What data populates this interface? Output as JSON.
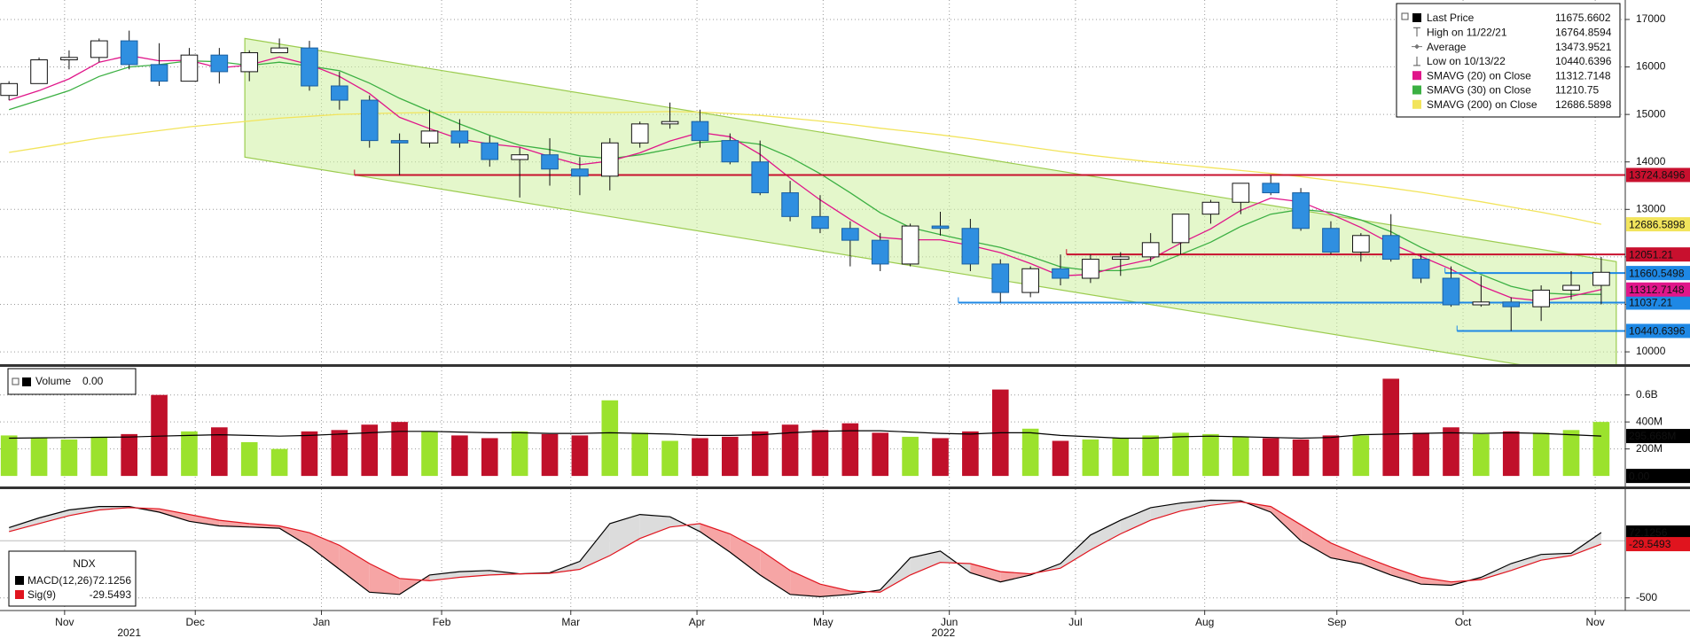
{
  "chart_data": [
    {
      "type": "candlestick",
      "name": "Last Price",
      "high_label": "High on 11/22/21",
      "low_label": "Low on 10/13/22",
      "average": {
        "label": "Average",
        "value": 13473.9521
      },
      "open": [
        15400,
        15650,
        16150,
        16200,
        16550,
        16050,
        15700,
        16250,
        15900,
        16300,
        16400,
        15600,
        15300,
        14450,
        14400,
        14650,
        14400,
        14050,
        14150,
        13850,
        13700,
        14400,
        14800,
        14850,
        14450,
        14000,
        13350,
        12850,
        12600,
        12350,
        11850,
        12650,
        12600,
        11850,
        11250,
        11750,
        11550,
        11950,
        12000,
        12300,
        12900,
        13150,
        13550,
        13350,
        12600,
        12100,
        12450,
        11950,
        11550,
        10990,
        11050,
        10950,
        11300,
        11400
      ],
      "high": [
        15700,
        16200,
        16350,
        16600,
        16764.8594,
        16500,
        16400,
        16400,
        16350,
        16600,
        16550,
        15900,
        15400,
        14600,
        15100,
        14900,
        14550,
        14300,
        14500,
        14100,
        14500,
        14850,
        15250,
        15100,
        14600,
        14450,
        13600,
        13300,
        12750,
        12500,
        12700,
        12950,
        12800,
        11950,
        11800,
        12050,
        12050,
        12100,
        12500,
        12900,
        13200,
        13550,
        13720,
        13450,
        12750,
        12500,
        12900,
        12050,
        11800,
        11600,
        11150,
        11400,
        11700,
        12000
      ],
      "low": [
        15300,
        15650,
        15950,
        16100,
        15950,
        15600,
        15700,
        15650,
        15700,
        16300,
        15500,
        15100,
        14300,
        13720,
        14300,
        14300,
        13900,
        13250,
        13500,
        13300,
        13400,
        14300,
        14700,
        14300,
        13950,
        13300,
        12750,
        12500,
        11800,
        11700,
        11800,
        12450,
        11700,
        11037.21,
        11150,
        11400,
        11450,
        11600,
        11900,
        12050,
        12700,
        12900,
        13300,
        12550,
        12050,
        11900,
        11900,
        11450,
        10950,
        10950,
        10440.6396,
        10650,
        11100,
        11000
      ],
      "close": [
        15650,
        16150,
        16200,
        16550,
        16050,
        15700,
        16250,
        15900,
        16300,
        16400,
        15600,
        15300,
        14450,
        14400,
        14650,
        14400,
        14050,
        14150,
        13850,
        13700,
        14400,
        14800,
        14850,
        14450,
        14000,
        13350,
        12850,
        12600,
        12350,
        11850,
        12650,
        12600,
        11850,
        11250,
        11750,
        11550,
        11950,
        12000,
        12300,
        12900,
        13150,
        13550,
        13350,
        12600,
        12100,
        12450,
        11950,
        11550,
        10990,
        11050,
        10950,
        11300,
        11400,
        11675.6602
      ],
      "up_color": "#ffffff",
      "down_color": "#2f8fe0",
      "series": [
        {
          "name": "SMAVG (20)  on Close",
          "color": "#e0168a",
          "values": [
            15300,
            15500,
            15750,
            16100,
            16240,
            16130,
            16140,
            15980,
            16040,
            16210,
            16050,
            15800,
            15440,
            14940,
            14700,
            14480,
            14380,
            14310,
            14110,
            13940,
            14020,
            14190,
            14440,
            14620,
            14530,
            14160,
            13660,
            13200,
            12790,
            12410,
            12360,
            12360,
            12240,
            12090,
            11860,
            11600,
            11630,
            11810,
            11950,
            12290,
            12590,
            12980,
            13240,
            13160,
            12900,
            12620,
            12280,
            12010,
            11740,
            11390,
            11140,
            11070,
            11170,
            11312.7148
          ]
        },
        {
          "name": "SMAVG (30)  on Close",
          "color": "#3cb043",
          "values": [
            15100,
            15300,
            15500,
            15800,
            16000,
            16050,
            16130,
            16110,
            16030,
            16100,
            16020,
            15920,
            15660,
            15340,
            15070,
            14800,
            14560,
            14350,
            14260,
            14130,
            14070,
            14150,
            14270,
            14410,
            14450,
            14370,
            14100,
            13750,
            13350,
            12930,
            12620,
            12470,
            12330,
            12200,
            12010,
            11790,
            11710,
            11710,
            11800,
            12050,
            12310,
            12640,
            12900,
            13000,
            12940,
            12780,
            12530,
            12200,
            11920,
            11630,
            11380,
            11240,
            11210,
            11210.75
          ]
        },
        {
          "name": "SMAVG (200)  on Close",
          "color": "#f2e45c",
          "values": [
            14200,
            14300,
            14400,
            14500,
            14580,
            14660,
            14740,
            14800,
            14860,
            14920,
            14960,
            15000,
            15020,
            15030,
            15040,
            15050,
            15050,
            15050,
            15040,
            15040,
            15040,
            15050,
            15060,
            15050,
            15020,
            14980,
            14920,
            14860,
            14790,
            14710,
            14640,
            14570,
            14490,
            14400,
            14310,
            14220,
            14140,
            14070,
            14000,
            13940,
            13880,
            13820,
            13760,
            13690,
            13610,
            13530,
            13450,
            13360,
            13260,
            13160,
            13050,
            12940,
            12820,
            12686.5898
          ]
        }
      ],
      "levels": [
        {
          "value": 13724.8496,
          "color": "#c8102e",
          "from": 11.5
        },
        {
          "value": 12051.21,
          "color": "#c8102e",
          "from": 35.2
        },
        {
          "value": 11660.5498,
          "color": "#1e88e5",
          "from": 47.8
        },
        {
          "value": 11037.21,
          "color": "#1e88e5",
          "from": 31.6
        },
        {
          "value": 10440.6396,
          "color": "#1e88e5",
          "from": 48.2
        }
      ],
      "channel": {
        "x": [
          7.85,
          53.5
        ],
        "upper": [
          16600,
          11900
        ],
        "lower": [
          14100,
          9400
        ]
      },
      "ylim": [
        9740,
        17410
      ],
      "yticks": [
        10000,
        11000,
        12000,
        13000,
        14000,
        15000,
        16000,
        17000
      ],
      "grid": true
    },
    {
      "type": "bar",
      "name": "Volume",
      "current": {
        "value": 0,
        "label": "0.00"
      },
      "up_color": "#9be22d",
      "down_color": "#c0102a",
      "values": [
        300,
        280,
        270,
        290,
        310,
        600,
        330,
        360,
        250,
        200,
        330,
        340,
        380,
        400,
        330,
        300,
        280,
        330,
        310,
        300,
        560,
        320,
        260,
        280,
        290,
        330,
        380,
        340,
        390,
        320,
        290,
        280,
        330,
        640,
        350,
        260,
        270,
        280,
        300,
        320,
        310,
        290,
        280,
        270,
        300,
        300,
        720,
        320,
        360,
        310,
        330,
        320,
        340,
        400
      ],
      "avg": {
        "color": "#000000",
        "last_label": "295.668M",
        "values": [
          280,
          282,
          284,
          286,
          288,
          295,
          300,
          305,
          300,
          295,
          300,
          310,
          320,
          330,
          330,
          325,
          320,
          320,
          315,
          315,
          320,
          315,
          310,
          300,
          300,
          305,
          320,
          330,
          335,
          335,
          325,
          315,
          310,
          320,
          320,
          300,
          290,
          280,
          280,
          290,
          295,
          290,
          285,
          280,
          285,
          305,
          310,
          315,
          320,
          315,
          320,
          315,
          305,
          295.668
        ]
      },
      "ylim": [
        -78,
        808
      ],
      "yticks": [
        {
          "value": 200,
          "label": "200M"
        },
        {
          "value": 400,
          "label": "400M"
        },
        {
          "value": 600,
          "label": "0.6B"
        }
      ],
      "grid": true
    },
    {
      "type": "line",
      "title": "NDX",
      "series": [
        {
          "name": "MACD(12,26)",
          "color": "#000000",
          "values": [
            115,
            200,
            270,
            300,
            300,
            250,
            170,
            130,
            120,
            110,
            -50,
            -250,
            -450,
            -470,
            -300,
            -270,
            -260,
            -290,
            -280,
            -180,
            150,
            230,
            210,
            80,
            -100,
            -300,
            -470,
            -490,
            -470,
            -430,
            -150,
            -90,
            -280,
            -360,
            -300,
            -200,
            50,
            180,
            290,
            330,
            355,
            350,
            250,
            0,
            -150,
            -200,
            -300,
            -380,
            -390,
            -320,
            -200,
            -120,
            -110,
            72.1256
          ]
        },
        {
          "name": "Sig(9)",
          "color": "#e0141e",
          "values": [
            80,
            150,
            220,
            270,
            290,
            280,
            230,
            180,
            150,
            130,
            70,
            -40,
            -200,
            -330,
            -350,
            -320,
            -300,
            -290,
            -285,
            -250,
            -130,
            20,
            120,
            150,
            60,
            -80,
            -260,
            -380,
            -440,
            -450,
            -300,
            -190,
            -200,
            -270,
            -290,
            -240,
            -80,
            60,
            180,
            260,
            310,
            340,
            300,
            140,
            -20,
            -130,
            -230,
            -320,
            -360,
            -340,
            -260,
            -170,
            -130,
            -29.5493
          ]
        }
      ],
      "ylim": [
        -611,
        452
      ],
      "yticks": [
        -500
      ],
      "grid": true,
      "xlim": [
        -0.3,
        53.8
      ],
      "xticks": [
        {
          "value": 1.85,
          "label": "Nov"
        },
        {
          "value": 6.2,
          "label": "Dec"
        },
        {
          "value": 10.4,
          "label": "Jan"
        },
        {
          "value": 14.4,
          "label": "Feb"
        },
        {
          "value": 18.7,
          "label": "Mar"
        },
        {
          "value": 22.9,
          "label": "Apr"
        },
        {
          "value": 27.1,
          "label": "May"
        },
        {
          "value": 31.3,
          "label": "Jun"
        },
        {
          "value": 35.5,
          "label": "Jul"
        },
        {
          "value": 39.8,
          "label": "Aug"
        },
        {
          "value": 44.2,
          "label": "Sep"
        },
        {
          "value": 48.4,
          "label": "Oct"
        },
        {
          "value": 52.8,
          "label": "Nov"
        }
      ],
      "years": [
        {
          "value": 4.0,
          "label": "2021"
        },
        {
          "value": 31.1,
          "label": "2022"
        }
      ]
    }
  ]
}
